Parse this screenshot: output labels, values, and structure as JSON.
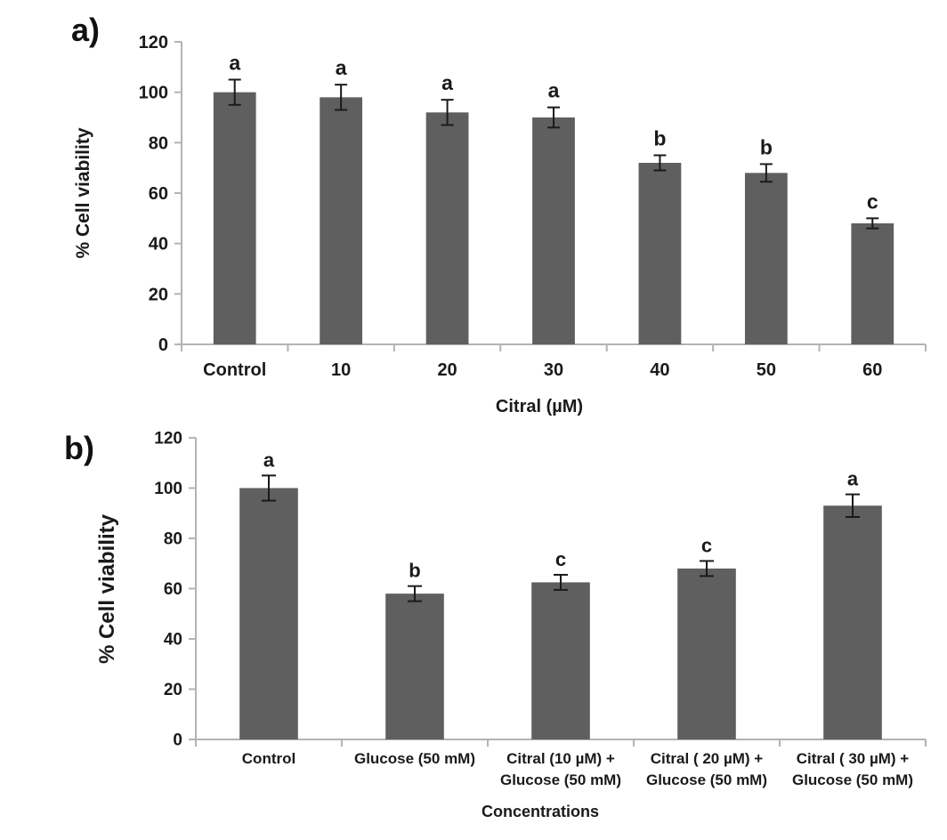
{
  "figure": {
    "background": "#ffffff",
    "panels": [
      {
        "label": "a)"
      },
      {
        "label": "b)"
      }
    ]
  },
  "colors": {
    "bar": "#5f5f5f",
    "axis": "#b3b3b3",
    "error_bar": "#1a1a1a",
    "text": "#1a1a1a"
  },
  "chart_data": [
    {
      "type": "bar",
      "panel": "a",
      "title": "",
      "xlabel": "Citral (µM)",
      "ylabel": "% Cell viability",
      "ylim": [
        0,
        120
      ],
      "yticks": [
        0,
        20,
        40,
        60,
        80,
        100,
        120
      ],
      "grid": false,
      "legend": null,
      "categories": [
        "Control",
        "10",
        "20",
        "30",
        "40",
        "50",
        "60"
      ],
      "values": [
        100,
        98,
        92,
        90,
        72,
        68,
        48
      ],
      "errors": [
        5,
        5,
        5,
        4,
        3,
        3.5,
        2
      ],
      "sig_letters": [
        "a",
        "a",
        "a",
        "a",
        "b",
        "b",
        "c"
      ]
    },
    {
      "type": "bar",
      "panel": "b",
      "title": "",
      "xlabel": "Concentrations",
      "ylabel": "% Cell viability",
      "ylim": [
        0,
        120
      ],
      "yticks": [
        0,
        20,
        40,
        60,
        80,
        100,
        120
      ],
      "grid": false,
      "legend": null,
      "categories": [
        "Control",
        "Glucose (50 mM)",
        "Citral (10 µM) +\nGlucose (50 mM)",
        "Citral ( 20 µM) +\nGlucose (50 mM)",
        "Citral ( 30 µM) +\nGlucose (50 mM)"
      ],
      "values": [
        100,
        58,
        62.5,
        68,
        93
      ],
      "errors": [
        5,
        3,
        3,
        3,
        4.5
      ],
      "sig_letters": [
        "a",
        "b",
        "c",
        "c",
        "a"
      ]
    }
  ]
}
